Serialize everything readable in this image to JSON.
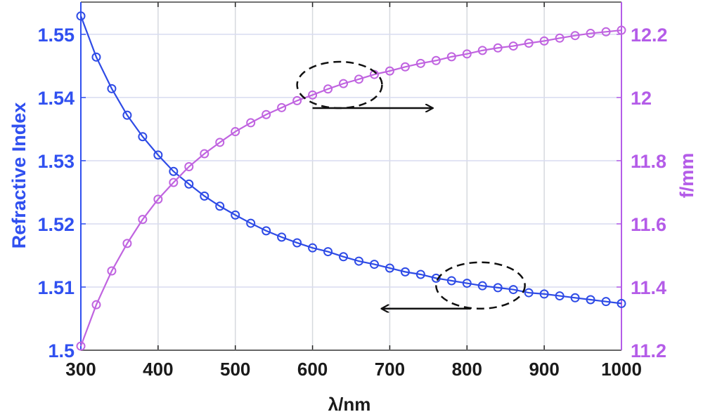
{
  "chart_data": {
    "type": "line",
    "xlabel": "λ/nm",
    "ylabel_left": "Refractive Index",
    "ylabel_right": "f/mm",
    "xlim": [
      300,
      1000
    ],
    "ylim_left": [
      1.5,
      1.5551
    ],
    "ylim_right": [
      11.2,
      12.302
    ],
    "x_ticks": [
      "300",
      "400",
      "500",
      "600",
      "700",
      "800",
      "900",
      "1000"
    ],
    "y_left_ticks": [
      "1.5",
      "1.51",
      "1.52",
      "1.53",
      "1.54",
      "1.55"
    ],
    "y_right_ticks": [
      "11.2",
      "11.4",
      "11.6",
      "11.8",
      "12",
      "12.2"
    ],
    "grid": true,
    "x": [
      300,
      320,
      340,
      360,
      380,
      400,
      420,
      440,
      460,
      480,
      500,
      520,
      540,
      560,
      580,
      600,
      620,
      640,
      660,
      680,
      700,
      720,
      740,
      760,
      780,
      800,
      820,
      840,
      860,
      880,
      900,
      920,
      940,
      960,
      980,
      1000
    ],
    "series": [
      {
        "axis": "left",
        "color": "#2E4BE6",
        "marker": "circle",
        "values": [
          1.5529,
          1.5464,
          1.5414,
          1.5372,
          1.5338,
          1.5309,
          1.5283,
          1.5263,
          1.5244,
          1.5228,
          1.5214,
          1.5201,
          1.5189,
          1.5179,
          1.517,
          1.5162,
          1.5156,
          1.5148,
          1.5141,
          1.5136,
          1.513,
          1.5124,
          1.512,
          1.5114,
          1.511,
          1.5106,
          1.5102,
          1.5099,
          1.5096,
          1.5091,
          1.5089,
          1.5086,
          1.5083,
          1.508,
          1.5077,
          1.5074
        ]
      },
      {
        "axis": "right",
        "color": "#C064E0",
        "marker": "circle",
        "values": [
          11.213,
          11.344,
          11.451,
          11.538,
          11.614,
          11.678,
          11.731,
          11.781,
          11.822,
          11.858,
          11.892,
          11.92,
          11.946,
          11.968,
          11.99,
          12.008,
          12.027,
          12.044,
          12.058,
          12.073,
          12.084,
          12.097,
          12.108,
          12.117,
          12.129,
          12.138,
          12.149,
          12.157,
          12.163,
          12.172,
          12.179,
          12.188,
          12.196,
          12.203,
          12.208,
          12.213
        ]
      }
    ],
    "annotations": [
      {
        "shape": "dashed-ellipse",
        "around_series": "right",
        "x_range": [
          580,
          690
        ],
        "arrow": "right",
        "arrow_x": [
          600,
          755
        ]
      },
      {
        "shape": "dashed-ellipse",
        "around_series": "left",
        "x_range": [
          760,
          875
        ],
        "arrow": "left",
        "arrow_x": [
          805,
          690
        ]
      }
    ],
    "colors": {
      "left_axis": "#3050F0",
      "right_axis": "#B45CE8",
      "grid": "#D8DCF0",
      "x_axis_text": "#1A1A1A"
    }
  }
}
